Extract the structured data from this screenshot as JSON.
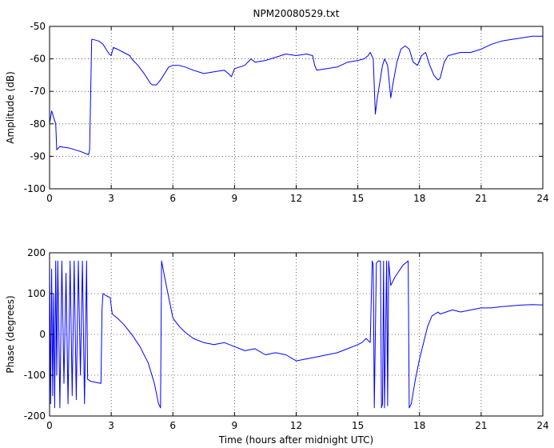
{
  "chart_data": [
    {
      "type": "line",
      "title": "NPM20080529.txt",
      "xlabel": "",
      "ylabel": "Amplitude (dB)",
      "xlim": [
        0,
        24
      ],
      "ylim": [
        -100,
        -50
      ],
      "xticks": [
        0,
        3,
        6,
        9,
        12,
        15,
        18,
        21,
        24
      ],
      "yticks": [
        -100,
        -90,
        -80,
        -70,
        -60,
        -50
      ],
      "grid": true,
      "line_color": "#0000ff",
      "series": [
        {
          "x": [
            0,
            0.1,
            0.2,
            0.3,
            0.35,
            0.5,
            1.0,
            1.5,
            1.9,
            1.95,
            2.05,
            2.1,
            2.4,
            2.5,
            2.6,
            2.7,
            2.8,
            2.9,
            3.0,
            3.1,
            3.3,
            3.6,
            3.9,
            4.0,
            4.3,
            4.6,
            4.9,
            5.0,
            5.2,
            5.4,
            5.55,
            5.7,
            5.8,
            6.0,
            6.3,
            6.6,
            7.0,
            7.5,
            8.0,
            8.5,
            8.7,
            8.85,
            9.0,
            9.5,
            9.8,
            10.0,
            10.5,
            11.0,
            11.5,
            12.0,
            12.5,
            12.8,
            12.9,
            13.0,
            13.5,
            14.0,
            14.5,
            15.0,
            15.3,
            15.5,
            15.6,
            15.75,
            15.85,
            15.95,
            16.1,
            16.2,
            16.3,
            16.45,
            16.6,
            16.7,
            16.9,
            17.1,
            17.3,
            17.5,
            17.7,
            17.9,
            18.1,
            18.3,
            18.5,
            18.7,
            18.9,
            19.0,
            19.2,
            19.4,
            19.7,
            20.0,
            20.5,
            21.0,
            21.5,
            22.0,
            22.5,
            23.0,
            23.5,
            24.0
          ],
          "y": [
            -80,
            -76,
            -78,
            -80,
            -88,
            -87,
            -87.5,
            -88.5,
            -89.5,
            -88,
            -54,
            -54,
            -54.5,
            -55,
            -55.5,
            -56.5,
            -57.5,
            -58.5,
            -59,
            -56.5,
            -57,
            -58,
            -59,
            -60,
            -62,
            -64.5,
            -67.5,
            -68,
            -68,
            -66.5,
            -65,
            -63.5,
            -62.5,
            -62,
            -62,
            -62.5,
            -63.5,
            -64.5,
            -64,
            -63.5,
            -64.5,
            -65.5,
            -63,
            -62,
            -60,
            -61,
            -60.5,
            -59.5,
            -58.5,
            -59,
            -58.5,
            -59,
            -62,
            -63.5,
            -63,
            -62.5,
            -61,
            -60.5,
            -60,
            -59,
            -58,
            -60,
            -77,
            -72,
            -66,
            -62,
            -60,
            -62,
            -72,
            -68,
            -61,
            -57,
            -56,
            -57,
            -61,
            -62,
            -59,
            -58,
            -62,
            -65,
            -66.5,
            -66,
            -61,
            -59,
            -58.5,
            -58,
            -58,
            -57,
            -55.5,
            -54.5,
            -54,
            -53.5,
            -53,
            -53
          ]
        }
      ]
    },
    {
      "type": "line",
      "title": "",
      "xlabel": "Time (hours after midnight UTC)",
      "ylabel": "Phase (degrees)",
      "xlim": [
        0,
        24
      ],
      "ylim": [
        -200,
        200
      ],
      "xticks": [
        0,
        3,
        6,
        9,
        12,
        15,
        18,
        21,
        24
      ],
      "yticks": [
        -200,
        -100,
        0,
        100,
        200
      ],
      "grid": true,
      "line_color": "#0000ff",
      "series": [
        {
          "x": [
            0,
            0.05,
            0.1,
            0.15,
            0.2,
            0.25,
            0.3,
            0.35,
            0.4,
            0.5,
            0.6,
            0.7,
            0.8,
            0.9,
            1.0,
            1.1,
            1.2,
            1.3,
            1.4,
            1.5,
            1.6,
            1.7,
            1.8,
            1.85,
            2.0,
            2.5,
            2.55,
            2.6,
            2.75,
            2.95,
            3.0,
            3.05,
            3.3,
            3.6,
            4.0,
            4.4,
            4.8,
            5.1,
            5.3,
            5.4,
            5.45,
            5.6,
            5.8,
            6.0,
            6.3,
            6.6,
            7.0,
            7.5,
            8.0,
            8.5,
            9.0,
            9.5,
            10.0,
            10.5,
            11.0,
            11.5,
            12.0,
            12.5,
            13.0,
            13.5,
            14.0,
            14.5,
            15.0,
            15.2,
            15.4,
            15.6,
            15.7,
            15.75,
            15.8,
            15.9,
            16.0,
            16.1,
            16.15,
            16.2,
            16.25,
            16.3,
            16.4,
            16.45,
            16.5,
            16.6,
            16.8,
            17.0,
            17.2,
            17.45,
            17.5,
            17.6,
            17.8,
            18.0,
            18.2,
            18.4,
            18.6,
            18.9,
            19.0,
            19.3,
            19.6,
            20.0,
            20.5,
            21.0,
            21.5,
            22.0,
            22.5,
            23.0,
            23.5,
            24.0
          ],
          "y": [
            170,
            -170,
            160,
            -150,
            100,
            -180,
            180,
            -100,
            180,
            -180,
            180,
            -120,
            150,
            -170,
            180,
            -150,
            180,
            -160,
            180,
            -100,
            180,
            -170,
            180,
            -110,
            -115,
            -120,
            60,
            100,
            95,
            90,
            70,
            50,
            40,
            25,
            0,
            -30,
            -70,
            -120,
            -170,
            -180,
            180,
            140,
            90,
            40,
            20,
            5,
            -10,
            -20,
            -25,
            -20,
            -30,
            -40,
            -35,
            -50,
            -45,
            -50,
            -65,
            -60,
            -55,
            -50,
            -45,
            -35,
            -25,
            -20,
            -10,
            -20,
            180,
            170,
            -180,
            175,
            180,
            180,
            -180,
            -170,
            180,
            -180,
            180,
            -175,
            180,
            120,
            140,
            155,
            170,
            180,
            -180,
            -170,
            -110,
            -60,
            -20,
            20,
            45,
            55,
            50,
            55,
            60,
            55,
            60,
            65,
            65,
            68,
            70,
            72,
            73,
            72
          ]
        }
      ]
    }
  ]
}
